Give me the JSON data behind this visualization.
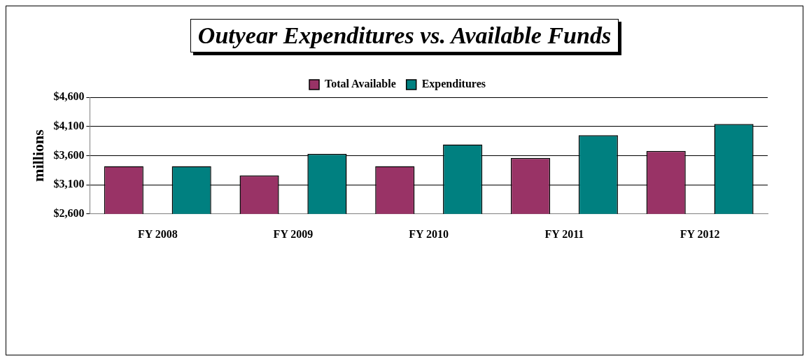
{
  "chart_data": {
    "type": "bar",
    "title": "Outyear Expenditures vs. Available Funds",
    "ylabel": "millions",
    "categories": [
      "FY 2008",
      "FY 2009",
      "FY 2010",
      "FY 2011",
      "FY 2012"
    ],
    "series": [
      {
        "name": "Total Available",
        "color": "#993366",
        "values": [
          3420,
          3260,
          3420,
          3560,
          3680
        ]
      },
      {
        "name": "Expenditures",
        "color": "#008080",
        "values": [
          3420,
          3630,
          3790,
          3950,
          4140
        ]
      }
    ],
    "ylim": [
      2600,
      4600
    ],
    "yticks": [
      {
        "value": 2600,
        "label": "$2,600"
      },
      {
        "value": 3100,
        "label": "$3,100"
      },
      {
        "value": 3600,
        "label": "$3,600"
      },
      {
        "value": 4100,
        "label": "$4,100"
      },
      {
        "value": 4600,
        "label": "$4,600"
      }
    ],
    "grid": "y",
    "legend": "top"
  }
}
